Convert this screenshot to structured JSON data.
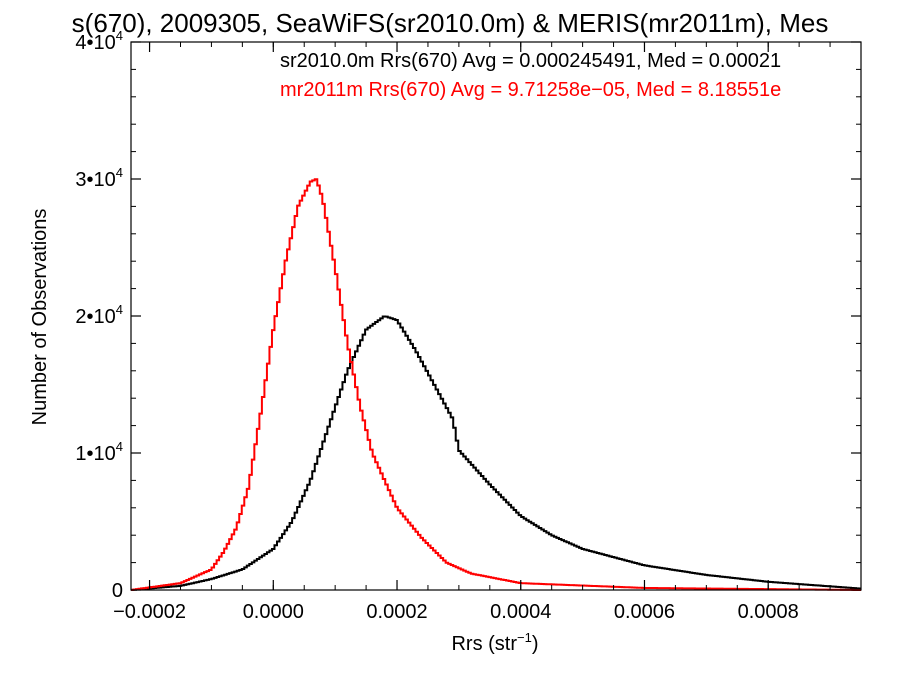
{
  "chart_data": {
    "type": "line",
    "title": "s(670), 2009305, SeaWiFS(sr2010.0m) & MERIS(mr2011m), Mes",
    "xlabel": "Rrs (str",
    "xlabel_sup": "−1",
    "xlabel_end": ")",
    "ylabel": "Number of Observations",
    "xlim": [
      -0.00023,
      0.00095
    ],
    "ylim": [
      0,
      40000
    ],
    "xticks": [
      {
        "value": -0.0002,
        "label": "−0.0002"
      },
      {
        "value": 0.0,
        "label": "0.0000"
      },
      {
        "value": 0.0002,
        "label": "0.0002"
      },
      {
        "value": 0.0004,
        "label": "0.0004"
      },
      {
        "value": 0.0006,
        "label": "0.0006"
      },
      {
        "value": 0.0008,
        "label": "0.0008"
      }
    ],
    "yticks": [
      {
        "value": 0,
        "label": "0",
        "sup": ""
      },
      {
        "value": 10000,
        "label": "1•10",
        "sup": "4"
      },
      {
        "value": 20000,
        "label": "2•10",
        "sup": "4"
      },
      {
        "value": 30000,
        "label": "3•10",
        "sup": "4"
      },
      {
        "value": 40000,
        "label": "4•10",
        "sup": "4"
      }
    ],
    "legend_position": "top-right",
    "series": [
      {
        "name": "sr2010.0m Rrs(670) Avg = 0.000245491, Med = 0.00021",
        "color": "#000000",
        "points": [
          [
            -0.00023,
            0
          ],
          [
            -0.00015,
            300
          ],
          [
            -0.0001,
            800
          ],
          [
            -5e-05,
            1500
          ],
          [
            0.0,
            3000
          ],
          [
            3e-05,
            5000
          ],
          [
            6e-05,
            8000
          ],
          [
            9e-05,
            12000
          ],
          [
            0.00012,
            16000
          ],
          [
            0.00015,
            19000
          ],
          [
            0.00018,
            20000
          ],
          [
            0.0002,
            19700
          ],
          [
            0.00023,
            17500
          ],
          [
            0.00026,
            15000
          ],
          [
            0.00029,
            12500
          ],
          [
            0.0003,
            10200
          ],
          [
            0.00031,
            9700
          ],
          [
            0.00035,
            7700
          ],
          [
            0.0004,
            5400
          ],
          [
            0.00045,
            4000
          ],
          [
            0.0005,
            3000
          ],
          [
            0.0006,
            1800
          ],
          [
            0.0007,
            1100
          ],
          [
            0.0008,
            600
          ],
          [
            0.00095,
            100
          ]
        ]
      },
      {
        "name": "mr2011m Rrs(670) Avg = 9.71258e−05, Med = 8.18551e",
        "color": "#ff0000",
        "points": [
          [
            -0.00023,
            0
          ],
          [
            -0.00015,
            500
          ],
          [
            -0.0001,
            1500
          ],
          [
            -8e-05,
            2800
          ],
          [
            -6e-05,
            4500
          ],
          [
            -4e-05,
            7500
          ],
          [
            -2e-05,
            13000
          ],
          [
            0.0,
            19000
          ],
          [
            2e-05,
            24000
          ],
          [
            4e-05,
            28000
          ],
          [
            6e-05,
            29800
          ],
          [
            7e-05,
            30000
          ],
          [
            8e-05,
            28500
          ],
          [
            0.0001,
            23500
          ],
          [
            0.00012,
            18000
          ],
          [
            0.00014,
            13500
          ],
          [
            0.00016,
            10000
          ],
          [
            0.00018,
            8000
          ],
          [
            0.0002,
            6000
          ],
          [
            0.00024,
            3800
          ],
          [
            0.00028,
            2000
          ],
          [
            0.00032,
            1200
          ],
          [
            0.0004,
            500
          ],
          [
            0.0006,
            150
          ],
          [
            0.00095,
            0
          ]
        ]
      }
    ]
  }
}
